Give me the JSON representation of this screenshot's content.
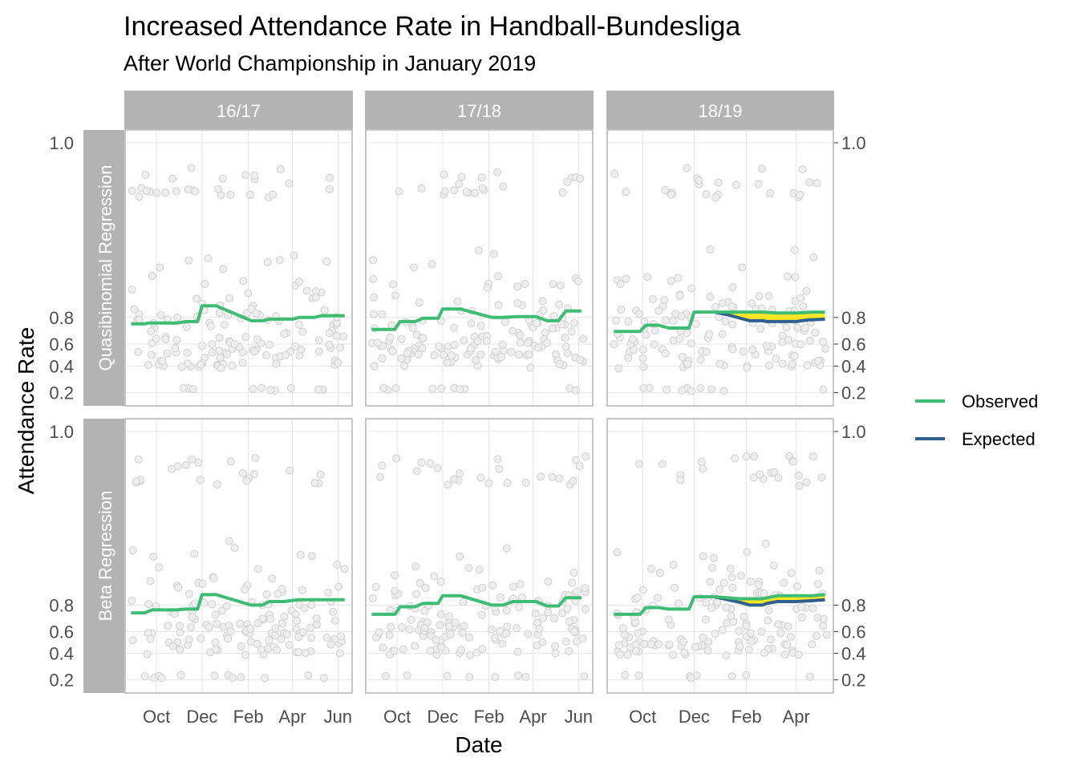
{
  "chart_data": {
    "type": "line",
    "title": "Increased Attendance Rate in Handball-Bundesliga",
    "subtitle": "After World Championship in January 2019",
    "xlabel": "Date",
    "ylabel": "Attendance Rate",
    "y_ticks": [
      0.2,
      0.4,
      0.6,
      0.8,
      1.0
    ],
    "y_tick_labels": [
      "0.2",
      "0.4",
      "0.6",
      "0.8",
      "1.0"
    ],
    "y_scale": "logit",
    "ylim": [
      0.18,
      1.0
    ],
    "grid": true,
    "legend": {
      "position": "right",
      "entries": [
        {
          "label": "Observed",
          "color": "#3fbc73"
        },
        {
          "label": "Expected",
          "color": "#31608e"
        }
      ]
    },
    "colors": {
      "observed": "#3fbc73",
      "expected": "#31608e",
      "gap_fill": "#fde725",
      "points": "#d9d9d9",
      "strip": "#b3b3b3"
    },
    "columns": [
      {
        "label": "16/17",
        "xlim": [
          "2016-08-20",
          "2017-06-20"
        ],
        "x_ticks": [
          {
            "date": "2016-10-01",
            "label": "Oct"
          },
          {
            "date": "2016-12-01",
            "label": "Dec"
          },
          {
            "date": "2017-02-01",
            "label": "Feb"
          },
          {
            "date": "2017-04-01",
            "label": "Apr"
          },
          {
            "date": "2017-06-01",
            "label": "Jun"
          }
        ]
      },
      {
        "label": "17/18",
        "xlim": [
          "2017-08-20",
          "2018-06-20"
        ],
        "x_ticks": [
          {
            "date": "2017-10-01",
            "label": "Oct"
          },
          {
            "date": "2017-12-01",
            "label": "Dec"
          },
          {
            "date": "2018-02-01",
            "label": "Feb"
          },
          {
            "date": "2018-04-01",
            "label": "Apr"
          },
          {
            "date": "2018-06-01",
            "label": "Jun"
          }
        ]
      },
      {
        "label": "18/19",
        "xlim": [
          "2018-08-20",
          "2019-05-15"
        ],
        "x_ticks": [
          {
            "date": "2018-10-01",
            "label": "Oct"
          },
          {
            "date": "2018-12-01",
            "label": "Dec"
          },
          {
            "date": "2019-02-01",
            "label": "Feb"
          },
          {
            "date": "2019-04-01",
            "label": "Apr"
          }
        ]
      }
    ],
    "rows": [
      {
        "label": "Quasibinomial Regression"
      },
      {
        "label": "Beta Regression"
      }
    ],
    "panels": [
      {
        "row": 0,
        "col": 0,
        "observed": {
          "x": [
            "2016-08-28",
            "2016-09-15",
            "2016-09-20",
            "2016-10-28",
            "2016-11-10",
            "2016-11-25",
            "2016-12-01",
            "2016-12-20",
            "2017-02-05",
            "2017-02-20",
            "2017-03-01",
            "2017-04-01",
            "2017-04-10",
            "2017-04-30",
            "2017-05-10",
            "2017-06-10"
          ],
          "y": [
            0.76,
            0.76,
            0.765,
            0.765,
            0.775,
            0.775,
            0.86,
            0.86,
            0.78,
            0.78,
            0.79,
            0.79,
            0.8,
            0.8,
            0.81,
            0.81
          ]
        }
      },
      {
        "row": 0,
        "col": 1,
        "observed": {
          "x": [
            "2017-08-28",
            "2017-09-28",
            "2017-10-05",
            "2017-10-25",
            "2017-11-05",
            "2017-11-25",
            "2017-12-01",
            "2017-12-25",
            "2018-02-05",
            "2018-02-20",
            "2018-03-10",
            "2018-04-05",
            "2018-04-20",
            "2018-05-05",
            "2018-05-15",
            "2018-06-05"
          ],
          "y": [
            0.72,
            0.72,
            0.775,
            0.775,
            0.795,
            0.795,
            0.845,
            0.845,
            0.8,
            0.8,
            0.805,
            0.805,
            0.78,
            0.78,
            0.835,
            0.835
          ]
        }
      },
      {
        "row": 0,
        "col": 2,
        "observed": {
          "x": [
            "2018-08-28",
            "2018-09-28",
            "2018-10-05",
            "2018-10-20",
            "2018-11-01",
            "2018-11-25",
            "2018-12-01",
            "2018-12-25",
            "2019-01-10",
            "2019-02-20",
            "2019-03-10",
            "2019-04-01",
            "2019-04-20",
            "2019-05-05"
          ],
          "y": [
            0.705,
            0.705,
            0.75,
            0.75,
            0.73,
            0.73,
            0.83,
            0.83,
            0.83,
            0.83,
            0.825,
            0.825,
            0.83,
            0.83
          ]
        },
        "expected": {
          "x": [
            "2018-12-25",
            "2019-01-10",
            "2019-01-25",
            "2019-02-05",
            "2019-02-20",
            "2019-02-25",
            "2019-03-10",
            "2019-04-01",
            "2019-04-15",
            "2019-05-05"
          ],
          "y": [
            0.83,
            0.815,
            0.795,
            0.78,
            0.78,
            0.775,
            0.775,
            0.775,
            0.785,
            0.79
          ]
        },
        "band": {
          "x": [
            "2018-12-25",
            "2019-01-10",
            "2019-01-25",
            "2019-02-05",
            "2019-02-20",
            "2019-02-25",
            "2019-03-10",
            "2019-04-01",
            "2019-04-15",
            "2019-05-05"
          ],
          "upper": [
            0.83,
            0.83,
            0.83,
            0.83,
            0.83,
            0.83,
            0.825,
            0.825,
            0.83,
            0.83
          ],
          "lower": [
            0.83,
            0.815,
            0.795,
            0.78,
            0.78,
            0.775,
            0.775,
            0.775,
            0.785,
            0.79
          ]
        }
      },
      {
        "row": 1,
        "col": 0,
        "observed": {
          "x": [
            "2016-08-28",
            "2016-09-15",
            "2016-09-25",
            "2016-10-28",
            "2016-11-10",
            "2016-11-25",
            "2016-12-01",
            "2016-12-20",
            "2017-02-05",
            "2017-02-20",
            "2017-03-01",
            "2017-03-20",
            "2017-04-10",
            "2017-06-10"
          ],
          "y": [
            0.75,
            0.75,
            0.77,
            0.77,
            0.775,
            0.775,
            0.855,
            0.855,
            0.8,
            0.8,
            0.82,
            0.82,
            0.83,
            0.83
          ]
        }
      },
      {
        "row": 1,
        "col": 1,
        "observed": {
          "x": [
            "2017-08-28",
            "2017-09-28",
            "2017-10-05",
            "2017-10-25",
            "2017-11-05",
            "2017-11-25",
            "2017-12-01",
            "2017-12-25",
            "2018-02-05",
            "2018-02-20",
            "2018-03-05",
            "2018-04-05",
            "2018-04-20",
            "2018-05-05",
            "2018-05-15",
            "2018-06-05"
          ],
          "y": [
            0.74,
            0.74,
            0.79,
            0.79,
            0.81,
            0.81,
            0.85,
            0.85,
            0.8,
            0.8,
            0.82,
            0.82,
            0.795,
            0.795,
            0.84,
            0.84
          ]
        }
      },
      {
        "row": 1,
        "col": 2,
        "observed": {
          "x": [
            "2018-08-28",
            "2018-09-28",
            "2018-10-05",
            "2018-10-20",
            "2018-11-01",
            "2018-11-25",
            "2018-12-01",
            "2018-12-25",
            "2019-01-25",
            "2019-02-20",
            "2019-03-10",
            "2019-04-01",
            "2019-04-20",
            "2019-05-05"
          ],
          "y": [
            0.74,
            0.74,
            0.785,
            0.785,
            0.775,
            0.775,
            0.845,
            0.845,
            0.835,
            0.835,
            0.85,
            0.85,
            0.85,
            0.855
          ]
        },
        "expected": {
          "x": [
            "2018-12-25",
            "2019-01-25",
            "2019-02-05",
            "2019-02-20",
            "2019-02-25",
            "2019-03-10",
            "2019-04-01",
            "2019-04-20",
            "2019-05-05"
          ],
          "y": [
            0.845,
            0.815,
            0.8,
            0.8,
            0.81,
            0.82,
            0.82,
            0.825,
            0.83
          ]
        },
        "band": {
          "x": [
            "2018-12-25",
            "2019-01-25",
            "2019-02-05",
            "2019-02-20",
            "2019-02-25",
            "2019-03-10",
            "2019-04-01",
            "2019-04-20",
            "2019-05-05"
          ],
          "upper": [
            0.845,
            0.835,
            0.835,
            0.835,
            0.84,
            0.85,
            0.85,
            0.85,
            0.855
          ],
          "lower": [
            0.845,
            0.815,
            0.8,
            0.8,
            0.81,
            0.82,
            0.82,
            0.825,
            0.83
          ]
        }
      }
    ]
  }
}
